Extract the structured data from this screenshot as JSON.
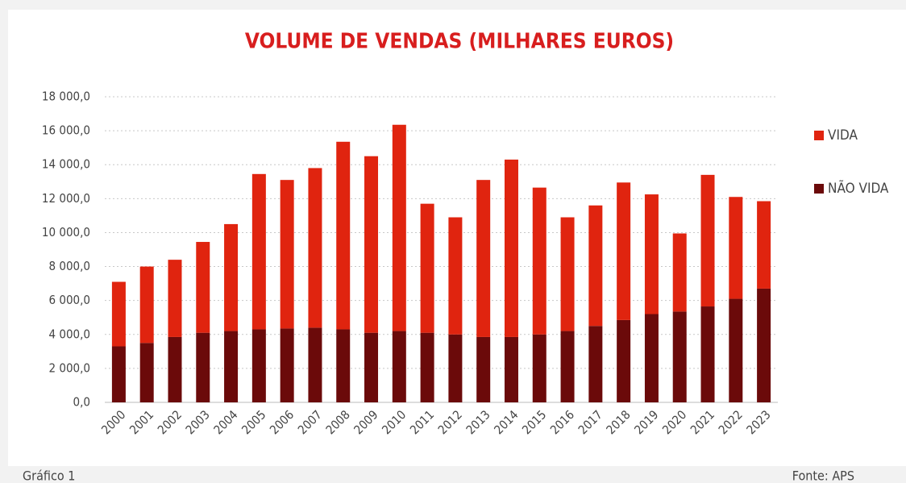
{
  "chart_data": {
    "type": "stacked_bar",
    "title": "VOLUME DE VENDAS (MILHARES EUROS)",
    "caption": "Gráfico 1",
    "source": "Fonte: APS",
    "categories": [
      "2000",
      "2001",
      "2002",
      "2003",
      "2004",
      "2005",
      "2006",
      "2007",
      "2008",
      "2009",
      "2010",
      "2011",
      "2012",
      "2013",
      "2014",
      "2015",
      "2016",
      "2017",
      "2018",
      "2019",
      "2020",
      "2021",
      "2022",
      "2023"
    ],
    "series": [
      {
        "name": "VIDA",
        "color": "#e0240f",
        "values": [
          3800,
          4500,
          4550,
          5350,
          6300,
          9150,
          8750,
          9400,
          11050,
          10400,
          12150,
          7600,
          6900,
          9250,
          10450,
          8650,
          6700,
          7100,
          8100,
          7050,
          4600,
          7750,
          6000,
          5150
        ]
      },
      {
        "name": "NÃO VIDA",
        "color": "#6b0a0a",
        "values": [
          3300,
          3500,
          3850,
          4100,
          4200,
          4300,
          4350,
          4400,
          4300,
          4100,
          4200,
          4100,
          4000,
          3850,
          3850,
          4000,
          4200,
          4500,
          4850,
          5200,
          5350,
          5650,
          6100,
          6700
        ]
      }
    ],
    "ylim": [
      0,
      18000
    ],
    "yticks": [
      {
        "value": 0,
        "label": "0,0"
      },
      {
        "value": 2000,
        "label": "2 000,0"
      },
      {
        "value": 4000,
        "label": "4 000,0"
      },
      {
        "value": 6000,
        "label": "6 000,0"
      },
      {
        "value": 8000,
        "label": "8 000,0"
      },
      {
        "value": 10000,
        "label": "10 000,0"
      },
      {
        "value": 12000,
        "label": "12 000,0"
      },
      {
        "value": 14000,
        "label": "14 000,0"
      },
      {
        "value": 16000,
        "label": "16 000,0"
      },
      {
        "value": 18000,
        "label": "18 000,0"
      }
    ],
    "grid": true,
    "legend": "right"
  }
}
